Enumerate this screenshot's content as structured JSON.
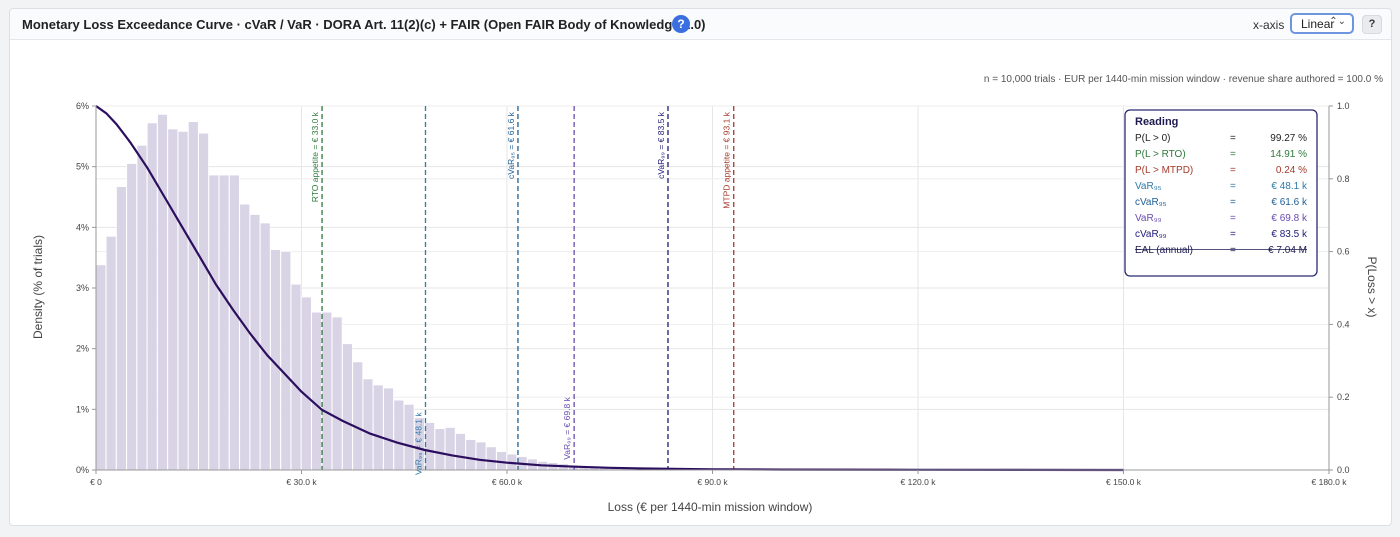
{
  "header": {
    "title": "Monetary Loss Exceedance Curve · cVaR / VaR · DORA Art. 11(2)(c) + FAIR (Open FAIR Body of Knowledge 2.0)",
    "help_icon": "?",
    "xaxis_label": "x-axis",
    "xaxis_value": "Linear",
    "secondary_help": "?"
  },
  "chart_data": {
    "type": "bar",
    "subtitle": "n = 10,000 trials · EUR per 1440-min mission window · revenue share authored = 100.0 %",
    "xlabel": "Loss (€ per 1440-min mission window)",
    "ylabel": "Density (% of trials)",
    "y2label": "P(Loss > x)",
    "xlim": [
      0,
      180000
    ],
    "ylim": [
      0,
      6
    ],
    "y2lim": [
      0,
      1
    ],
    "x_ticks": [
      {
        "value": 0,
        "label": "€ 0"
      },
      {
        "value": 30000,
        "label": "€ 30.0 k"
      },
      {
        "value": 60000,
        "label": "€ 60.0 k"
      },
      {
        "value": 90000,
        "label": "€ 90.0 k"
      },
      {
        "value": 120000,
        "label": "€ 120.0 k"
      },
      {
        "value": 150000,
        "label": "€ 150.0 k"
      },
      {
        "value": 180000,
        "label": "€ 180.0 k"
      }
    ],
    "y_ticks": [
      {
        "value": 0,
        "label": "0%"
      },
      {
        "value": 1,
        "label": "1%"
      },
      {
        "value": 2,
        "label": "2%"
      },
      {
        "value": 3,
        "label": "3%"
      },
      {
        "value": 4,
        "label": "4%"
      },
      {
        "value": 5,
        "label": "5%"
      },
      {
        "value": 6,
        "label": "6%"
      }
    ],
    "y2_ticks": [
      {
        "value": 0,
        "label": "0.0"
      },
      {
        "value": 0.2,
        "label": "0.2"
      },
      {
        "value": 0.4,
        "label": "0.4"
      },
      {
        "value": 0.6,
        "label": "0.6"
      },
      {
        "value": 0.8,
        "label": "0.8"
      },
      {
        "value": 1.0,
        "label": "1.0"
      }
    ],
    "grid": true,
    "histogram": {
      "bin_width": 1500,
      "color": "#d9d3e6",
      "values": [
        3.38,
        3.85,
        4.67,
        5.05,
        5.35,
        5.72,
        5.86,
        5.62,
        5.58,
        5.74,
        5.55,
        4.86,
        4.86,
        4.86,
        4.38,
        4.21,
        4.07,
        3.63,
        3.6,
        3.06,
        2.85,
        2.6,
        2.6,
        2.52,
        2.08,
        1.78,
        1.5,
        1.4,
        1.35,
        1.15,
        1.08,
        0.86,
        0.78,
        0.68,
        0.7,
        0.6,
        0.5,
        0.46,
        0.38,
        0.3,
        0.26,
        0.22,
        0.18,
        0.14,
        0.12,
        0.1,
        0.08,
        0.06,
        0.05,
        0.04,
        0.03,
        0.03,
        0.02,
        0.02,
        0.01,
        0.01,
        0.01,
        0.01,
        0.01,
        0.01
      ]
    },
    "exceedance_curve": {
      "color": "#2b0f5e",
      "x": [
        0,
        1500,
        3000,
        5000,
        7500,
        10000,
        12500,
        15000,
        17500,
        20000,
        22500,
        25000,
        27500,
        30000,
        33000,
        36000,
        40000,
        44000,
        48000,
        52000,
        56000,
        60000,
        65000,
        70000,
        75000,
        80000,
        90000,
        100000,
        120000,
        150000
      ],
      "y": [
        1.0,
        0.98,
        0.95,
        0.9,
        0.83,
        0.75,
        0.67,
        0.59,
        0.51,
        0.44,
        0.375,
        0.315,
        0.265,
        0.215,
        0.165,
        0.135,
        0.1,
        0.075,
        0.055,
        0.04,
        0.028,
        0.02,
        0.013,
        0.009,
        0.006,
        0.004,
        0.002,
        0.001,
        0.0005,
        0.0
      ]
    },
    "markers": [
      {
        "value": 33000,
        "label": "RTO appetite = € 33.0 k",
        "color": "#2e7a3c",
        "label_y": 5.9
      },
      {
        "value": 48100,
        "label": "VaR₉₅ = € 48.1 k",
        "color": "#2e7aa8",
        "label_y": 0.95
      },
      {
        "value": 61600,
        "label": "cVaR₉₅ = € 61.6 k",
        "color": "#1f5f95",
        "label_y": 5.9
      },
      {
        "value": 69800,
        "label": "VaR₉₉ = € 69.8 k",
        "color": "#6a4bb0",
        "label_y": 1.2
      },
      {
        "value": 83500,
        "label": "cVaR₉₉ = € 83.5 k",
        "color": "#1e1b78",
        "label_y": 5.9
      },
      {
        "value": 93100,
        "label": "MTPD appetite = € 93.1 k",
        "color": "#a53a2a",
        "label_y": 5.9
      }
    ],
    "reading": {
      "title": "Reading",
      "rows": [
        {
          "label": "P(L > 0)",
          "eq": "=",
          "value": "99.27 %",
          "color": "#222222"
        },
        {
          "label": "P(L > RTO)",
          "eq": "=",
          "value": "14.91 %",
          "color": "#2e7a3c"
        },
        {
          "label": "P(L > MTPD)",
          "eq": "=",
          "value": "0.24 %",
          "color": "#a53a2a"
        },
        {
          "label": "VaR₉₅",
          "eq": "=",
          "value": "€ 48.1 k",
          "color": "#2e7aa8"
        },
        {
          "label": "cVaR₉₅",
          "eq": "=",
          "value": "€ 61.6 k",
          "color": "#1f5f95"
        },
        {
          "label": "VaR₉₉",
          "eq": "=",
          "value": "€ 69.8 k",
          "color": "#6a4bb0"
        },
        {
          "label": "cVaR₉₉",
          "eq": "=",
          "value": "€ 83.5 k",
          "color": "#1e1b78"
        },
        {
          "label": "EAL (annual)",
          "eq": "=",
          "value": "€ 7.04 M",
          "color": "#1e1b50"
        }
      ]
    }
  }
}
